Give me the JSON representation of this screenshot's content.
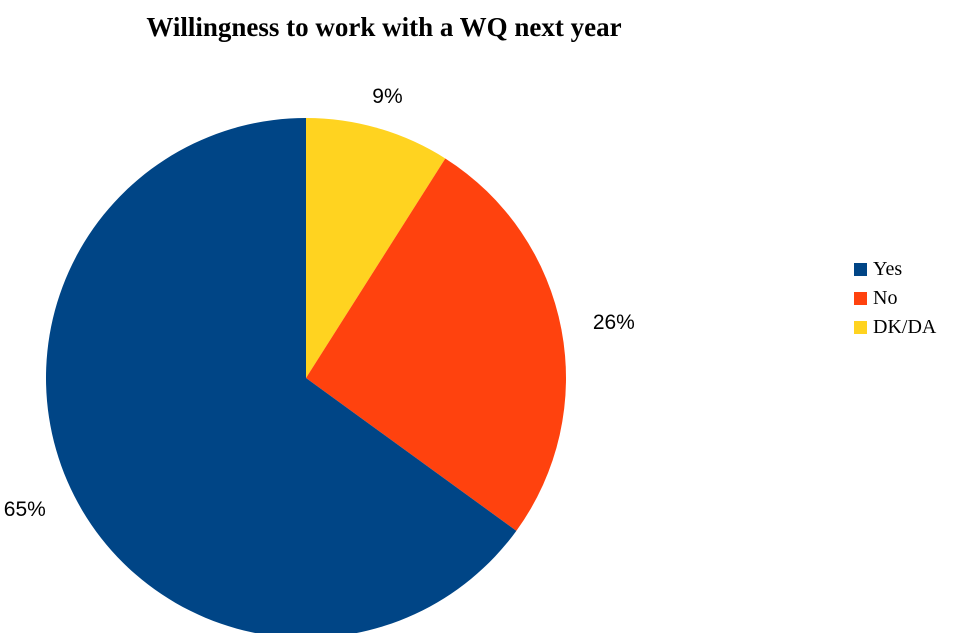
{
  "chart_data": {
    "type": "pie",
    "title": "Willingness to work with a WQ next year",
    "categories": [
      "Yes",
      "No",
      "DK/DA"
    ],
    "values": [
      65,
      26,
      9
    ],
    "labels": [
      "65%",
      "26%",
      "9%"
    ],
    "colors": [
      "#004586",
      "#ff420e",
      "#ffd320"
    ],
    "legend": "right"
  }
}
